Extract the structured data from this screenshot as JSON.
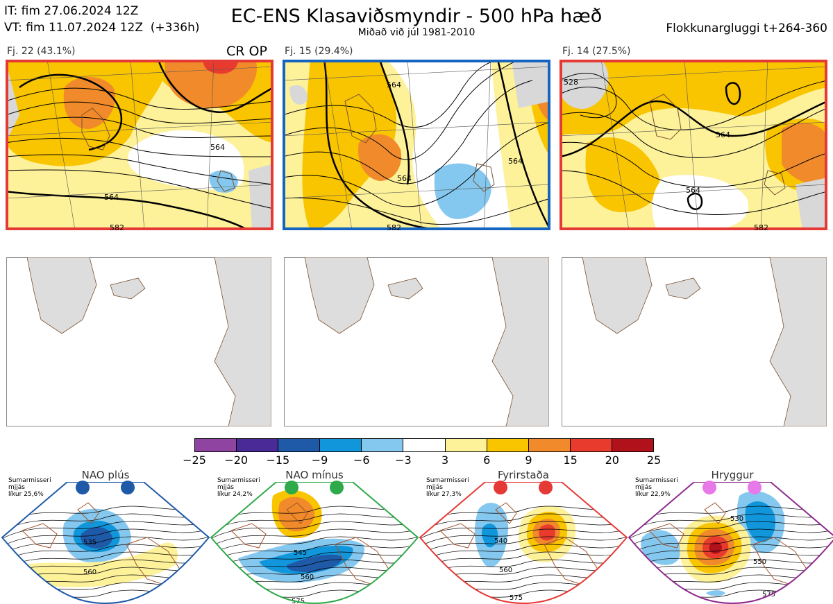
{
  "header": {
    "it_line": "IT: fim 27.06.2024 12Z",
    "vt_line": "VT: fim 11.07.2024 12Z  (+336h)",
    "title": "EC-ENS Klasaviðsmyndir - 500 hPa hæð",
    "subtitle": "Miðað við júl 1981-2010",
    "window": "Flokkunargluggi t+264-360"
  },
  "clusters": [
    {
      "label": "Fj. 22 (43.1%)",
      "badge": "CR OP",
      "border": "#e53935",
      "contours": [
        "564",
        "564",
        "582"
      ]
    },
    {
      "label": "Fj. 15 (29.4%)",
      "badge": "",
      "border": "#1565c0",
      "contours": [
        "564",
        "564",
        "564",
        "582"
      ]
    },
    {
      "label": "Fj. 14 (27.5%)",
      "badge": "",
      "border": "#e53935",
      "contours": [
        "528",
        "564",
        "564",
        "582"
      ]
    }
  ],
  "colorbar": {
    "colors": [
      "#8e44a0",
      "#4a2a96",
      "#1e5aa8",
      "#1296db",
      "#85c8ef",
      "#ffffff",
      "#fdf19a",
      "#f9c400",
      "#f08a2a",
      "#e83b2e",
      "#b0111a"
    ],
    "ticks": [
      "−25",
      "−20",
      "−15",
      "−9",
      "−6",
      "−3",
      "3",
      "6",
      "9",
      "15",
      "20",
      "25"
    ]
  },
  "regimes": [
    {
      "name": "NAO plús",
      "note": "Sumarmisseri\nmjjás\nlíkur 25,6%",
      "border": "#1e5aa8",
      "dot": "#1e5aa8",
      "contours": [
        "535",
        "560"
      ]
    },
    {
      "name": "NAO mínus",
      "note": "Sumarmisseri\nmjjás\nlíkur 24,2%",
      "border": "#2eaa4a",
      "dot": "#2eaa4a",
      "contours": [
        "545",
        "560",
        "575"
      ]
    },
    {
      "name": "Fyrirstaða",
      "note": "Sumarmisseri\nmjjás\nlíkur 27,3%",
      "border": "#e53935",
      "dot": "#e53935",
      "contours": [
        "540",
        "560",
        "575"
      ]
    },
    {
      "name": "Hryggur",
      "note": "Sumarmisseri\nmjjás\nlíkur 22,9%",
      "border": "#8e2a8e",
      "dot": "#e879e8",
      "contours": [
        "530",
        "550",
        "575"
      ]
    }
  ]
}
